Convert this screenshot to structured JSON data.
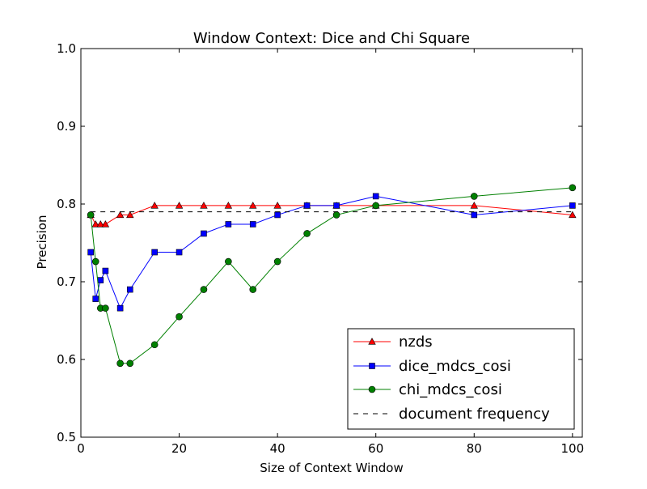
{
  "chart_data": {
    "type": "line",
    "title": "Window Context: Dice and Chi Square",
    "xlabel": "Size of Context Window",
    "ylabel": "Precision",
    "xlim": [
      0,
      102
    ],
    "ylim": [
      0.5,
      1.0
    ],
    "xticks": [
      0,
      20,
      40,
      60,
      80,
      100
    ],
    "xtick_labels": [
      "0",
      "20",
      "40",
      "60",
      "80",
      "100"
    ],
    "yticks": [
      0.5,
      0.6,
      0.7,
      0.8,
      0.9,
      1.0
    ],
    "ytick_labels": [
      "0.5",
      "0.6",
      "0.7",
      "0.8",
      "0.9",
      "1.0"
    ],
    "grid": false,
    "legend_position": "bottom-right",
    "series": [
      {
        "name": "nzds",
        "color": "#ff0000",
        "marker": "triangle",
        "line_style": "solid",
        "x": [
          2,
          3,
          4,
          5,
          8,
          10,
          15,
          20,
          25,
          30,
          35,
          40,
          46,
          52,
          60,
          80,
          100
        ],
        "y": [
          0.786,
          0.774,
          0.774,
          0.774,
          0.786,
          0.786,
          0.798,
          0.798,
          0.798,
          0.798,
          0.798,
          0.798,
          0.798,
          0.798,
          0.798,
          0.798,
          0.786
        ]
      },
      {
        "name": "dice_mdcs_cosi",
        "color": "#0000ff",
        "marker": "square",
        "line_style": "solid",
        "x": [
          2,
          3,
          4,
          5,
          8,
          10,
          15,
          20,
          25,
          30,
          35,
          40,
          46,
          52,
          60,
          80,
          100
        ],
        "y": [
          0.738,
          0.678,
          0.702,
          0.714,
          0.666,
          0.69,
          0.738,
          0.738,
          0.762,
          0.774,
          0.774,
          0.786,
          0.798,
          0.798,
          0.81,
          0.786,
          0.798
        ]
      },
      {
        "name": "chi_mdcs_cosi",
        "color": "#008000",
        "marker": "circle",
        "line_style": "solid",
        "x": [
          2,
          3,
          4,
          5,
          8,
          10,
          15,
          20,
          25,
          30,
          35,
          40,
          46,
          52,
          60,
          80,
          100
        ],
        "y": [
          0.786,
          0.726,
          0.666,
          0.666,
          0.595,
          0.595,
          0.619,
          0.655,
          0.69,
          0.726,
          0.69,
          0.726,
          0.762,
          0.786,
          0.798,
          0.81,
          0.821
        ]
      },
      {
        "name": "document frequency",
        "color": "#000000",
        "marker": "none",
        "line_style": "dashed",
        "x": [
          2,
          100
        ],
        "y": [
          0.79,
          0.79
        ]
      }
    ]
  }
}
